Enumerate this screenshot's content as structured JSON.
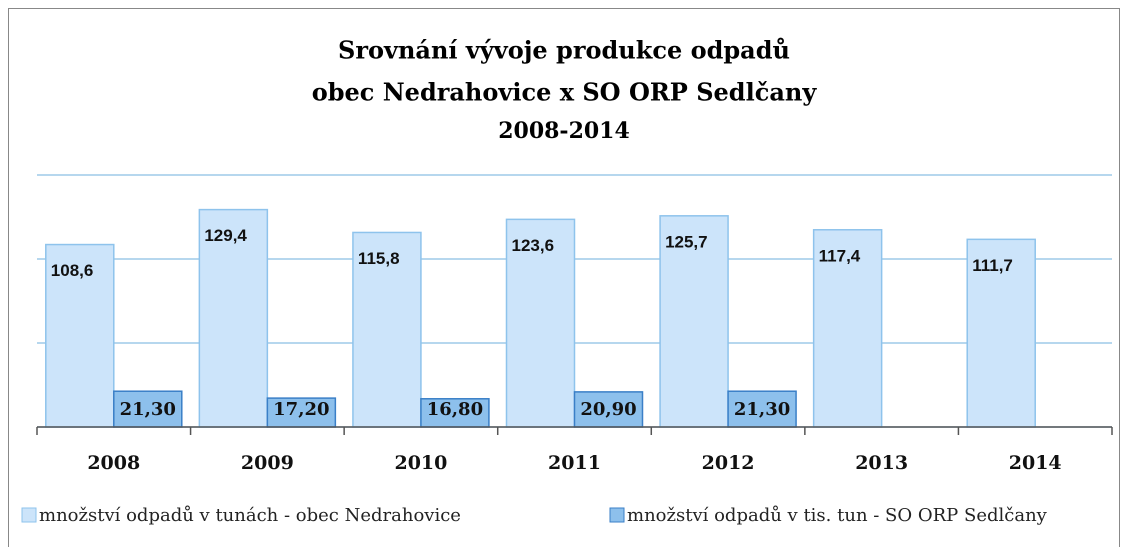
{
  "chart_data": {
    "type": "bar",
    "title": [
      "Srovnání vývoje produkce odpadů",
      "obec Nedrahovice  x  SO ORP Sedlčany",
      "2008-2014"
    ],
    "categories": [
      "2008",
      "2009",
      "2010",
      "2011",
      "2012",
      "2013",
      "2014"
    ],
    "series": [
      {
        "name": "množství odpadů v tunách - obec Nedrahovice",
        "color": "#cce4fa",
        "values": [
          108.6,
          129.4,
          115.8,
          123.6,
          125.7,
          117.4,
          111.7
        ],
        "value_labels": [
          "108,6",
          "129,4",
          "115,8",
          "123,6",
          "125,7",
          "117,4",
          "111,7"
        ]
      },
      {
        "name": "množství odpadů v tis. tun - SO ORP Sedlčany",
        "color": "#8dc0ec",
        "values": [
          21.3,
          17.2,
          16.8,
          20.9,
          21.3,
          null,
          null
        ],
        "value_labels": [
          "21,30",
          "17,20",
          "16,80",
          "20,90",
          "21,30",
          null,
          null
        ]
      }
    ],
    "ylim": [
      0,
      150
    ],
    "yticks": [
      0,
      50,
      100,
      150
    ],
    "grid": true,
    "legend": "bottom"
  }
}
